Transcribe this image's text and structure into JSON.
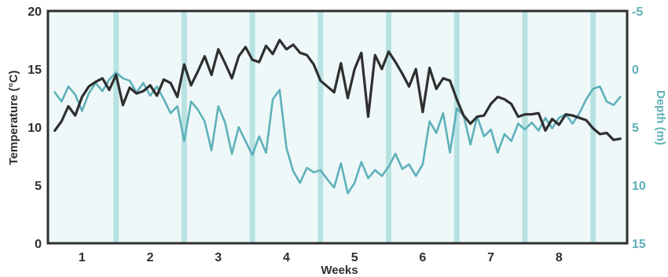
{
  "chart_data": {
    "type": "line",
    "title": "",
    "xlabel": "Weeks",
    "ylabel_left": "Temperature (°C)",
    "ylabel_right": "Depth (m)",
    "x_range": [
      0.5,
      9.0
    ],
    "x_tick_labels": [
      "1",
      "2",
      "3",
      "4",
      "5",
      "6",
      "7",
      "8"
    ],
    "week_boundaries": [
      1.5,
      2.5,
      3.5,
      4.5,
      5.5,
      6.5,
      7.5,
      8.5
    ],
    "ylim_left": [
      0,
      20
    ],
    "left_ticks": [
      0,
      5,
      10,
      15,
      20
    ],
    "ylim_right": [
      15,
      -5
    ],
    "right_ticks": [
      -5,
      0,
      5,
      10,
      15
    ],
    "grid": false,
    "colors": {
      "temperature": "#2f2f2f",
      "depth": "#5fb0ba",
      "week_band": "#b8e2e2",
      "plot_bg": "#eef8f8",
      "right_axis_text": "#5fb0ba"
    },
    "series": [
      {
        "axis": "left",
        "x": [
          0.6,
          0.7,
          0.8,
          0.9,
          1.0,
          1.1,
          1.2,
          1.3,
          1.4,
          1.5,
          1.6,
          1.7,
          1.8,
          1.9,
          2.0,
          2.1,
          2.2,
          2.3,
          2.4,
          2.5,
          2.6,
          2.7,
          2.8,
          2.9,
          3.0,
          3.1,
          3.2,
          3.3,
          3.4,
          3.5,
          3.6,
          3.7,
          3.8,
          3.9,
          4.0,
          4.1,
          4.2,
          4.3,
          4.4,
          4.5,
          4.6,
          4.7,
          4.8,
          4.9,
          5.0,
          5.1,
          5.2,
          5.3,
          5.4,
          5.5,
          5.6,
          5.7,
          5.8,
          5.9,
          6.0,
          6.1,
          6.2,
          6.3,
          6.4,
          6.5,
          6.6,
          6.7,
          6.8,
          6.9,
          7.0,
          7.1,
          7.2,
          7.3,
          7.4,
          7.5,
          7.6,
          7.7,
          7.8,
          7.9,
          8.0,
          8.1,
          8.2,
          8.3,
          8.4,
          8.5,
          8.6,
          8.7,
          8.8,
          8.9
        ],
        "values": [
          9.7,
          10.5,
          11.8,
          11.0,
          12.6,
          13.5,
          13.9,
          14.2,
          13.2,
          14.5,
          11.9,
          13.4,
          12.9,
          13.1,
          13.6,
          12.7,
          14.1,
          13.8,
          12.6,
          15.4,
          13.6,
          14.8,
          16.1,
          14.5,
          16.7,
          15.5,
          14.2,
          16.1,
          16.9,
          15.8,
          15.6,
          17.0,
          16.3,
          17.5,
          16.7,
          17.1,
          16.4,
          16.2,
          15.4,
          14.0,
          13.5,
          13.0,
          15.5,
          12.5,
          15.0,
          16.4,
          10.9,
          16.2,
          15.0,
          16.5,
          15.6,
          14.6,
          13.5,
          15.0,
          11.3,
          15.1,
          13.3,
          14.2,
          14.0,
          12.4,
          11.0,
          10.3,
          10.9,
          11.0,
          12.0,
          12.6,
          12.4,
          12.0,
          10.9,
          11.1,
          11.1,
          11.2,
          9.7,
          10.7,
          10.2,
          11.1,
          11.0,
          10.8,
          10.6,
          9.9,
          9.4,
          9.5,
          8.9,
          9.0
        ]
      },
      {
        "axis": "right",
        "x": [
          0.6,
          0.7,
          0.8,
          0.9,
          1.0,
          1.1,
          1.2,
          1.3,
          1.4,
          1.5,
          1.6,
          1.7,
          1.8,
          1.9,
          2.0,
          2.1,
          2.2,
          2.3,
          2.4,
          2.5,
          2.6,
          2.7,
          2.8,
          2.9,
          3.0,
          3.1,
          3.2,
          3.3,
          3.4,
          3.5,
          3.6,
          3.7,
          3.8,
          3.9,
          4.0,
          4.1,
          4.2,
          4.3,
          4.4,
          4.5,
          4.6,
          4.7,
          4.8,
          4.9,
          5.0,
          5.1,
          5.2,
          5.3,
          5.4,
          5.5,
          5.6,
          5.7,
          5.8,
          5.9,
          6.0,
          6.1,
          6.2,
          6.3,
          6.4,
          6.5,
          6.6,
          6.7,
          6.8,
          6.9,
          7.0,
          7.1,
          7.2,
          7.3,
          7.4,
          7.5,
          7.6,
          7.7,
          7.8,
          7.9,
          8.0,
          8.1,
          8.2,
          8.3,
          8.4,
          8.5,
          8.6,
          8.7,
          8.8,
          8.9
        ],
        "values": [
          2.0,
          2.8,
          1.5,
          2.2,
          3.6,
          2.1,
          1.2,
          1.9,
          0.9,
          0.3,
          0.8,
          1.0,
          2.0,
          1.2,
          2.3,
          1.5,
          2.6,
          3.8,
          3.2,
          6.2,
          2.8,
          3.5,
          4.5,
          7.0,
          3.2,
          4.6,
          7.3,
          5.0,
          6.2,
          7.4,
          5.8,
          7.2,
          2.6,
          1.8,
          6.8,
          8.8,
          9.8,
          8.5,
          8.9,
          8.7,
          9.5,
          10.2,
          8.1,
          10.7,
          9.8,
          8.0,
          9.4,
          8.7,
          9.2,
          8.4,
          7.3,
          8.6,
          8.2,
          9.2,
          8.2,
          4.5,
          5.5,
          3.8,
          7.2,
          3.4,
          4.0,
          6.5,
          4.1,
          5.8,
          5.2,
          7.2,
          5.6,
          6.2,
          4.7,
          5.2,
          4.6,
          5.3,
          4.2,
          5.1,
          4.2,
          3.9,
          4.7,
          3.8,
          2.6,
          1.7,
          1.5,
          2.8,
          3.1,
          2.4
        ]
      }
    ]
  }
}
